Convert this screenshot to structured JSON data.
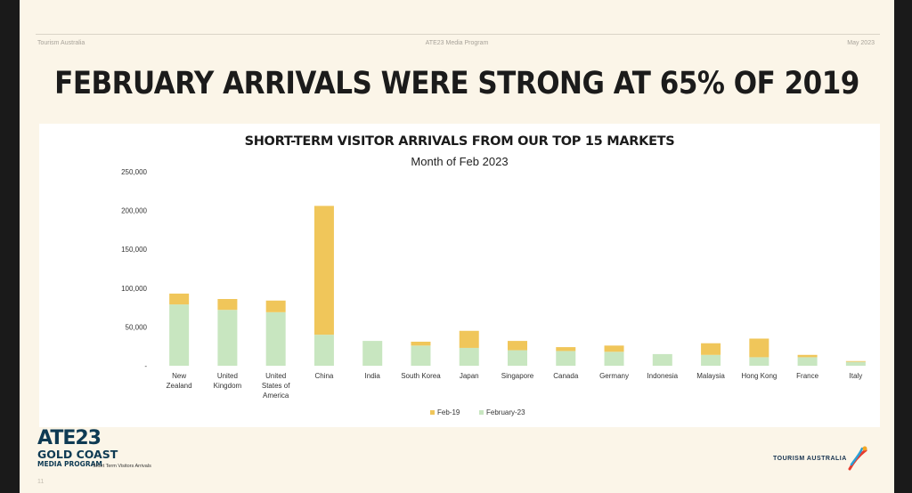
{
  "header": {
    "left": "Tourism Australia",
    "center": "ATE23 Media Program",
    "right": "May 2023"
  },
  "slide_title": "FEBRUARY ARRIVALS WERE STRONG AT 65% OF 2019",
  "chart_data": {
    "type": "bar",
    "stacked": true,
    "title": "SHORT-TERM VISITOR ARRIVALS FROM OUR TOP 15 MARKETS",
    "subtitle": "Month of Feb 2023",
    "categories": [
      [
        "New",
        "Zealand"
      ],
      [
        "United",
        "Kingdom"
      ],
      [
        "United",
        "States of",
        "America"
      ],
      [
        "China"
      ],
      [
        "India"
      ],
      [
        "South Korea"
      ],
      [
        "Japan"
      ],
      [
        "Singapore"
      ],
      [
        "Canada"
      ],
      [
        "Germany"
      ],
      [
        "Indonesia"
      ],
      [
        "Malaysia"
      ],
      [
        "Hong Kong"
      ],
      [
        "France"
      ],
      [
        "Italy"
      ]
    ],
    "series": [
      {
        "name": "February-23",
        "color": "#c8e6c0",
        "values": [
          79000,
          72000,
          69000,
          40000,
          32000,
          26000,
          23000,
          20000,
          19000,
          18000,
          15000,
          14000,
          11000,
          11000,
          5000
        ]
      },
      {
        "name": "Feb-19",
        "color": "#f0c65a",
        "values": [
          14000,
          14000,
          15000,
          166000,
          0,
          5000,
          22000,
          12000,
          5000,
          8000,
          0,
          15000,
          24000,
          3000,
          1000
        ]
      }
    ],
    "legend_order": [
      "Feb-19",
      "February-23"
    ],
    "legend_position": "bottom",
    "yticks": [
      "-",
      "50,000",
      "100,000",
      "150,000",
      "200,000",
      "250,000"
    ],
    "ylim": [
      0,
      250000
    ],
    "grid": false
  },
  "footer": {
    "logo_line1": "ATE23",
    "logo_line2": "GOLD COAST",
    "logo_line3": "MEDIA PROGRAM",
    "source": "Short Term Visitors Arrivals",
    "page": "11",
    "brand": "TOURISM AUSTRALIA",
    "brand_mark_colors": [
      "#e63b2e",
      "#f5a623",
      "#2a9fd6"
    ]
  }
}
